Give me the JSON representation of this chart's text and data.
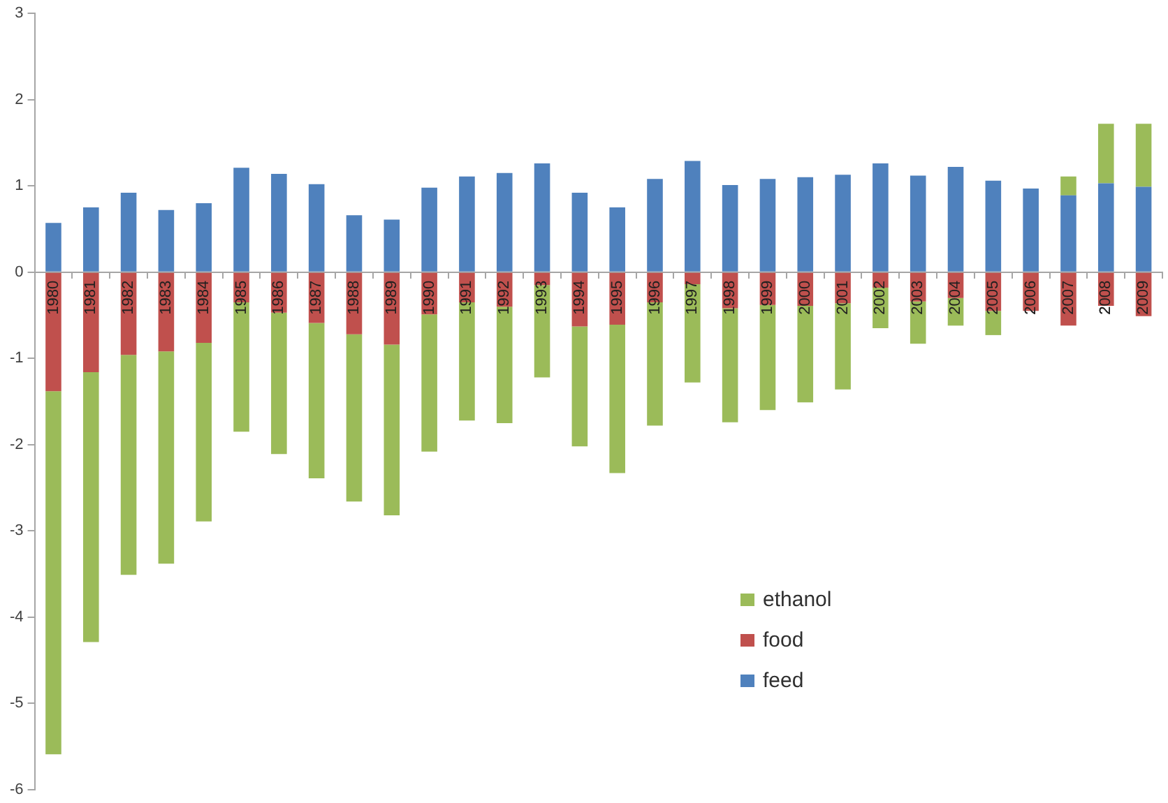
{
  "chart_data": {
    "type": "bar",
    "stacked": true,
    "legend": "bottom right",
    "grid": false,
    "categories": [
      "1980",
      "1981",
      "1982",
      "1983",
      "1984",
      "1985",
      "1986",
      "1987",
      "1988",
      "1989",
      "1990",
      "1991",
      "1992",
      "1993",
      "1994",
      "1995",
      "1996",
      "1997",
      "1998",
      "1999",
      "2000",
      "2001",
      "2002",
      "2003",
      "2004",
      "2005",
      "2006",
      "2007",
      "2008",
      "2009"
    ],
    "ylim": [
      -6,
      3
    ],
    "yticks": [
      -6,
      -5,
      -4,
      -3,
      -2,
      -1,
      0,
      1,
      2,
      3
    ],
    "series": [
      {
        "name": "feed",
        "color": "#4f81bd",
        "values": [
          0.57,
          0.75,
          0.92,
          0.72,
          0.8,
          1.21,
          1.14,
          1.02,
          0.66,
          0.61,
          0.98,
          1.11,
          1.15,
          1.26,
          0.92,
          0.75,
          1.08,
          1.29,
          1.01,
          1.08,
          1.1,
          1.13,
          1.26,
          1.12,
          1.22,
          1.06,
          0.97,
          0.89,
          1.03,
          0.99
        ]
      },
      {
        "name": "food",
        "color": "#c0504d",
        "values": [
          -1.38,
          -1.16,
          -0.96,
          -0.92,
          -0.82,
          -0.35,
          -0.47,
          -0.59,
          -0.72,
          -0.84,
          -0.49,
          -0.35,
          -0.4,
          -0.15,
          -0.63,
          -0.61,
          -0.35,
          -0.14,
          -0.42,
          -0.38,
          -0.39,
          -0.36,
          -0.18,
          -0.34,
          -0.3,
          -0.45,
          -0.45,
          -0.62,
          -0.39,
          -0.51
        ]
      },
      {
        "name": "ethanol",
        "color": "#9bbb59",
        "values": [
          -4.21,
          -3.13,
          -2.55,
          -2.46,
          -2.07,
          -1.5,
          -1.64,
          -1.8,
          -1.94,
          -1.98,
          -1.59,
          -1.37,
          -1.35,
          -1.07,
          -1.39,
          -1.72,
          -1.43,
          -1.14,
          -1.32,
          -1.22,
          -1.12,
          -1,
          -0.47,
          -0.49,
          -0.32,
          -0.28,
          null,
          0.22,
          0.69,
          0.73
        ]
      }
    ]
  }
}
